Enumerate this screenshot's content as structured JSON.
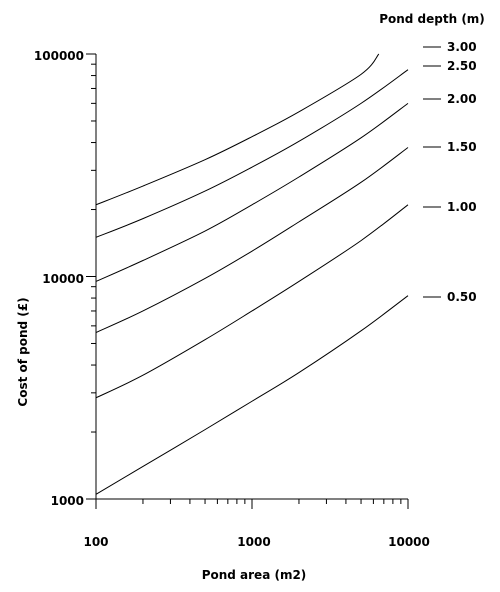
{
  "chart_data": {
    "type": "line",
    "xlabel": "Pond area (m2)",
    "ylabel": "Cost of pond (£)",
    "x_scale": "log",
    "y_scale": "log",
    "xlim": [
      100,
      10000
    ],
    "ylim": [
      1000,
      100000
    ],
    "x_tick_labels": [
      "100",
      "1000",
      "10000"
    ],
    "y_tick_labels": [
      "1000",
      "10000",
      "100000"
    ],
    "legend_title": "Pond depth (m)",
    "legend_placement": "right",
    "series": [
      {
        "name": "3.00",
        "x": [
          100,
          200,
          500,
          1000,
          2000,
          5000,
          6500
        ],
        "values": [
          21000,
          25500,
          33500,
          42500,
          55000,
          81000,
          100000
        ]
      },
      {
        "name": "2.50",
        "x": [
          100,
          200,
          500,
          1000,
          2000,
          5000,
          10000
        ],
        "values": [
          15000,
          18200,
          24200,
          31000,
          40500,
          60000,
          85000
        ]
      },
      {
        "name": "2.00",
        "x": [
          100,
          200,
          500,
          1000,
          2000,
          5000,
          10000
        ],
        "values": [
          9500,
          11800,
          16000,
          21000,
          28000,
          42000,
          60000
        ]
      },
      {
        "name": "1.50",
        "x": [
          100,
          200,
          500,
          1000,
          2000,
          5000,
          10000
        ],
        "values": [
          5600,
          7000,
          9800,
          13000,
          17600,
          26500,
          38000
        ]
      },
      {
        "name": "1.00",
        "x": [
          100,
          200,
          500,
          1000,
          2000,
          5000,
          10000
        ],
        "values": [
          2850,
          3600,
          5200,
          7000,
          9500,
          14500,
          21000
        ]
      },
      {
        "name": "0.50",
        "x": [
          100,
          200,
          500,
          1000,
          2000,
          5000,
          10000
        ],
        "values": [
          1050,
          1400,
          2050,
          2750,
          3700,
          5700,
          8200
        ]
      }
    ]
  }
}
